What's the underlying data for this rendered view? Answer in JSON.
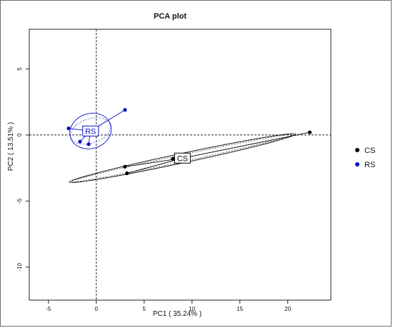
{
  "chart_data": {
    "type": "scatter",
    "title": "PCA plot",
    "xlabel": "PC1 ( 35.24% )",
    "ylabel": "PC2 ( 13.51% )",
    "xlim": [
      -7,
      24.5
    ],
    "ylim": [
      -12.5,
      8
    ],
    "x_ticks": [
      -5,
      0,
      5,
      10,
      15,
      20
    ],
    "y_ticks": [
      5,
      0,
      -5,
      -10
    ],
    "grid": false,
    "reference_lines": {
      "x": 0,
      "y": 0
    },
    "legend_position": "right",
    "series": [
      {
        "name": "CS",
        "color": "#000000",
        "points": [
          [
            22.3,
            0.2
          ],
          [
            8.0,
            -1.8
          ],
          [
            3.0,
            -2.4
          ],
          [
            3.2,
            -2.9
          ]
        ],
        "centroid": [
          9.0,
          -1.75
        ],
        "centroid_label": "CS",
        "ellipse": {
          "axis_tip": [
            15.3,
            -0.8
          ],
          "angle_deg": 12,
          "rx": 12.1,
          "ry": 0.15
        }
      },
      {
        "name": "RS",
        "color": "#0a10c8",
        "points": [
          [
            -2.9,
            0.5
          ],
          [
            3.0,
            1.9
          ],
          [
            -1.7,
            -0.5
          ],
          [
            -0.8,
            -0.7
          ]
        ],
        "centroid": [
          -0.6,
          0.3
        ],
        "centroid_label": "RS",
        "ellipse": {
          "angle_deg": 18,
          "rx": 2.2,
          "ry": 0.55
        }
      }
    ]
  }
}
